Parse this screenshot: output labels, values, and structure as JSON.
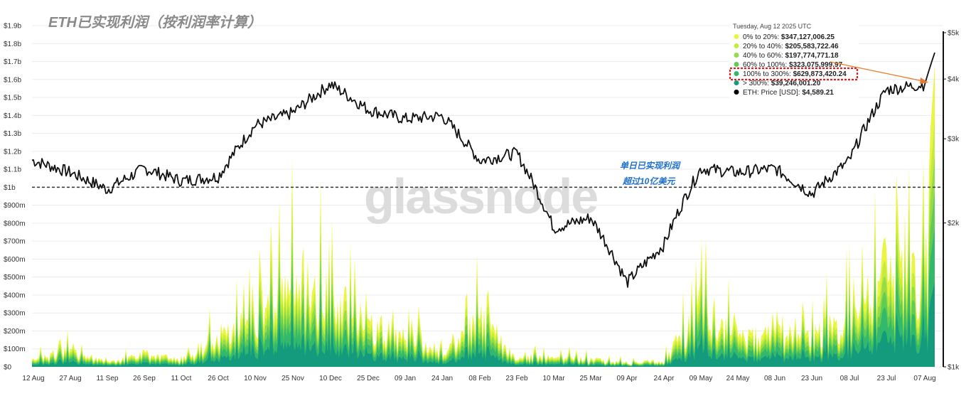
{
  "chart_data": {
    "type": "area",
    "title": "ETH已实现利润（按利润率计算）",
    "watermark": "glassnode",
    "annotation": [
      "单日已实现利润",
      "超过10亿美元"
    ],
    "x_ticks": [
      "12 Aug",
      "27 Aug",
      "11 Sep",
      "26 Sep",
      "11 Oct",
      "26 Oct",
      "10 Nov",
      "25 Nov",
      "10 Dec",
      "25 Dec",
      "09 Jan",
      "24 Jan",
      "08 Feb",
      "23 Feb",
      "10 Mar",
      "25 Mar",
      "09 Apr",
      "24 Apr",
      "09 May",
      "24 May",
      "08 Jun",
      "23 Jun",
      "08 Jul",
      "23 Jul",
      "07 Aug"
    ],
    "y_left_ticks": [
      "$0",
      "$100m",
      "$200m",
      "$300m",
      "$400m",
      "$500m",
      "$600m",
      "$700m",
      "$800m",
      "$900m",
      "$1b",
      "$1.1b",
      "$1.2b",
      "$1.3b",
      "$1.4b",
      "$1.5b",
      "$1.6b",
      "$1.7b",
      "$1.8b",
      "$1.9b"
    ],
    "y_left_range": [
      0,
      1900000000
    ],
    "y_right_ticks": [
      "$1k",
      "$2k",
      "$3k",
      "$4k",
      "$5k"
    ],
    "y_right_scale": "log",
    "y_right_range": [
      1000,
      5000
    ],
    "reference_line": {
      "value": 1000000000,
      "style": "dashed"
    },
    "grid": true,
    "legend_position": "top-right",
    "tooltip": {
      "date": "Tuesday, Aug 12 2025 UTC",
      "rows": [
        {
          "label": "0% to 20%:",
          "value": "$347,127,006.25",
          "color": "#eaf542"
        },
        {
          "label": "20% to 40%:",
          "value": "$205,583,722.46",
          "color": "#c3ec3c"
        },
        {
          "label": "40% to 60%:",
          "value": "$197,774,771.18",
          "color": "#94dc48"
        },
        {
          "label": "60% to 100%:",
          "value": "$323,075,999.97",
          "color": "#62cb52"
        },
        {
          "label": "100% to 300%:",
          "value": "$629,873,420.24",
          "color": "#33b96b"
        },
        {
          "label": "> 300%:",
          "value": "$39,246,001.20",
          "color": "#149a7c"
        },
        {
          "label": "ETH: Price [USD]:",
          "value": "$4,589.21",
          "color": "#000000"
        }
      ],
      "highlighted_row": 4
    },
    "series_colors": [
      "#149a7c",
      "#33b96b",
      "#62cb52",
      "#94dc48",
      "#c3ec3c",
      "#eaf542"
    ],
    "price_series": [
      {
        "x": "12 Aug",
        "y": 2700
      },
      {
        "x": "27 Aug",
        "y": 2550
      },
      {
        "x": "11 Sep",
        "y": 2350
      },
      {
        "x": "26 Sep",
        "y": 2600
      },
      {
        "x": "11 Oct",
        "y": 2450
      },
      {
        "x": "26 Oct",
        "y": 2500
      },
      {
        "x": "10 Nov",
        "y": 3200
      },
      {
        "x": "25 Nov",
        "y": 3400
      },
      {
        "x": "10 Dec",
        "y": 3900
      },
      {
        "x": "25 Dec",
        "y": 3450
      },
      {
        "x": "09 Jan",
        "y": 3300
      },
      {
        "x": "24 Jan",
        "y": 3350
      },
      {
        "x": "08 Feb",
        "y": 2700
      },
      {
        "x": "23 Feb",
        "y": 2800
      },
      {
        "x": "10 Mar",
        "y": 1950
      },
      {
        "x": "25 Mar",
        "y": 2050
      },
      {
        "x": "09 Apr",
        "y": 1500
      },
      {
        "x": "24 Apr",
        "y": 1800
      },
      {
        "x": "09 May",
        "y": 2600
      },
      {
        "x": "24 May",
        "y": 2550
      },
      {
        "x": "08 Jun",
        "y": 2600
      },
      {
        "x": "23 Jun",
        "y": 2300
      },
      {
        "x": "08 Jul",
        "y": 2700
      },
      {
        "x": "23 Jul",
        "y": 3800
      },
      {
        "x": "07 Aug",
        "y": 3900
      },
      {
        "x": "12 Aug",
        "y": 4589
      }
    ],
    "total_profit_series": [
      {
        "x": "12 Aug",
        "y": 60000000
      },
      {
        "x": "27 Aug",
        "y": 180000000
      },
      {
        "x": "11 Sep",
        "y": 40000000
      },
      {
        "x": "26 Sep",
        "y": 130000000
      },
      {
        "x": "11 Oct",
        "y": 60000000
      },
      {
        "x": "26 Oct",
        "y": 300000000
      },
      {
        "x": "10 Nov",
        "y": 450000000
      },
      {
        "x": "25 Nov",
        "y": 900000000
      },
      {
        "x": "10 Dec",
        "y": 700000000
      },
      {
        "x": "25 Dec",
        "y": 400000000
      },
      {
        "x": "09 Jan",
        "y": 300000000
      },
      {
        "x": "24 Jan",
        "y": 150000000
      },
      {
        "x": "08 Feb",
        "y": 500000000
      },
      {
        "x": "23 Feb",
        "y": 80000000
      },
      {
        "x": "10 Mar",
        "y": 90000000
      },
      {
        "x": "25 Mar",
        "y": 70000000
      },
      {
        "x": "09 Apr",
        "y": 40000000
      },
      {
        "x": "24 Apr",
        "y": 60000000
      },
      {
        "x": "09 May",
        "y": 600000000
      },
      {
        "x": "24 May",
        "y": 300000000
      },
      {
        "x": "08 Jun",
        "y": 300000000
      },
      {
        "x": "23 Jun",
        "y": 300000000
      },
      {
        "x": "08 Jul",
        "y": 500000000
      },
      {
        "x": "23 Jul",
        "y": 950000000
      },
      {
        "x": "07 Aug",
        "y": 850000000
      },
      {
        "x": "12 Aug",
        "y": 1742680921
      }
    ]
  }
}
